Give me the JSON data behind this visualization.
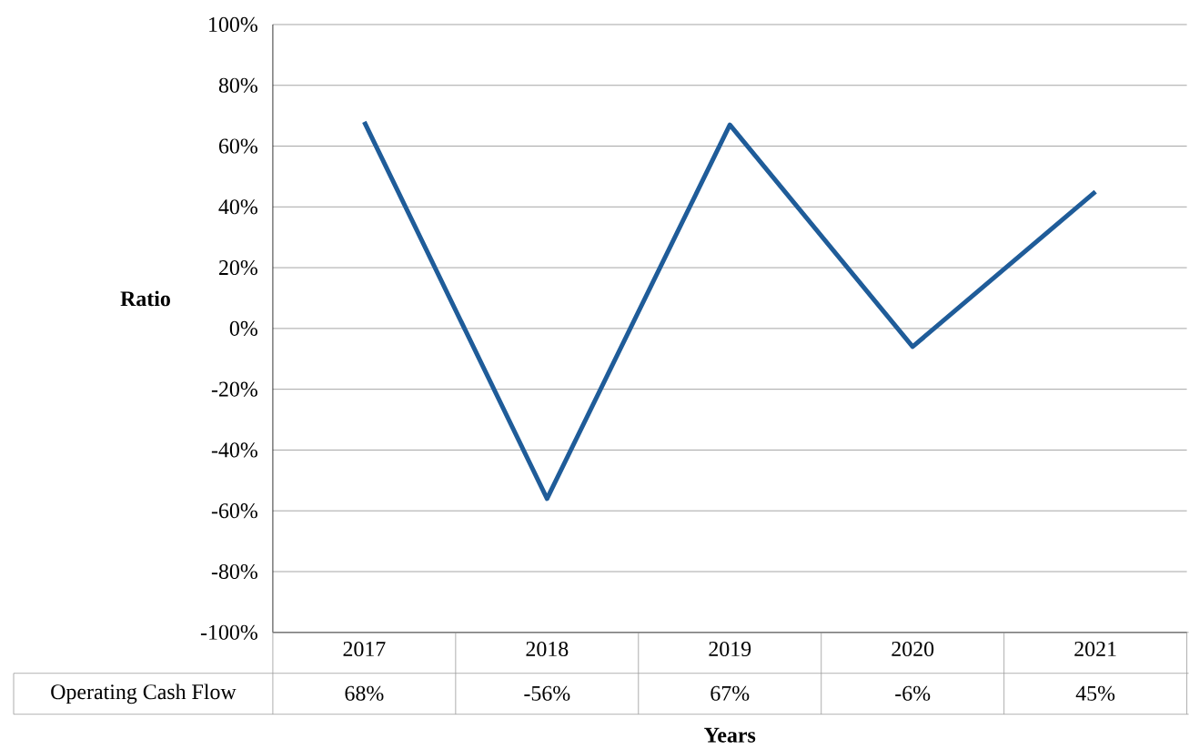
{
  "chart_data": {
    "type": "line",
    "xlabel": "Years",
    "ylabel": "Ratio",
    "categories": [
      "2017",
      "2018",
      "2019",
      "2020",
      "2021"
    ],
    "series": [
      {
        "name": "Operating Cash Flow",
        "color": "#1f5c99",
        "values": [
          68,
          -56,
          67,
          -6,
          45
        ],
        "value_labels": [
          "68%",
          "-56%",
          "67%",
          "-6%",
          "45%"
        ]
      }
    ],
    "ylim": [
      -100,
      100
    ],
    "yticks": [
      {
        "value": -100,
        "label": "-100%"
      },
      {
        "value": -80,
        "label": "-80%"
      },
      {
        "value": -60,
        "label": "-60%"
      },
      {
        "value": -40,
        "label": "-40%"
      },
      {
        "value": -20,
        "label": "-20%"
      },
      {
        "value": 0,
        "label": "0%"
      },
      {
        "value": 20,
        "label": "20%"
      },
      {
        "value": 40,
        "label": "40%"
      },
      {
        "value": 60,
        "label": "60%"
      },
      {
        "value": 80,
        "label": "80%"
      },
      {
        "value": 100,
        "label": "100%"
      }
    ],
    "grid": "y",
    "marker": "none",
    "line_style": "solid"
  }
}
